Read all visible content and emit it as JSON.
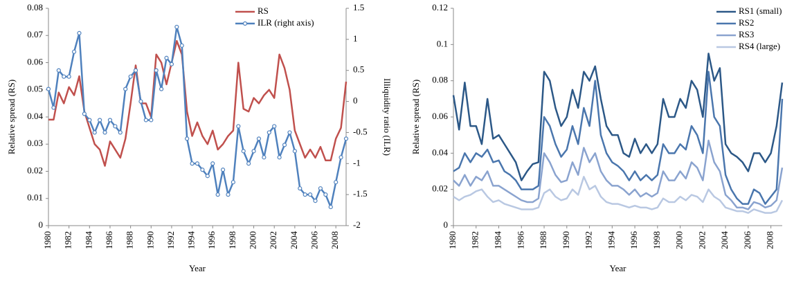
{
  "chart_data": [
    {
      "type": "line",
      "x_label": "Year",
      "y_label": "Relative spread (RS)",
      "y2_label": "Illiquidity ratio (ILR)",
      "legend": "top-right",
      "x": [
        1980,
        1980.5,
        1981,
        1981.5,
        1982,
        1982.5,
        1983,
        1983.5,
        1984,
        1984.5,
        1985,
        1985.5,
        1986,
        1986.5,
        1987,
        1987.5,
        1988,
        1988.5,
        1989,
        1989.5,
        1990,
        1990.5,
        1991,
        1991.5,
        1992,
        1992.5,
        1993,
        1993.5,
        1994,
        1994.5,
        1995,
        1995.5,
        1996,
        1996.5,
        1997,
        1997.5,
        1998,
        1998.5,
        1999,
        1999.5,
        2000,
        2000.5,
        2001,
        2001.5,
        2002,
        2002.5,
        2003,
        2003.5,
        2004,
        2004.5,
        2005,
        2005.5,
        2006,
        2006.5,
        2007,
        2007.5,
        2008,
        2008.5,
        2009
      ],
      "xlim": [
        1980,
        2009
      ],
      "xticks": [
        1980,
        1982,
        1984,
        1986,
        1988,
        1990,
        1992,
        1994,
        1996,
        1998,
        2000,
        2002,
        2004,
        2006,
        2008
      ],
      "ylim": [
        0,
        0.08
      ],
      "yticks": [
        0,
        0.01,
        0.02,
        0.03,
        0.04,
        0.05,
        0.06,
        0.07,
        0.08
      ],
      "y2lim": [
        -2,
        1.5
      ],
      "y2ticks": [
        -2,
        -1.5,
        -1,
        -0.5,
        0,
        0.5,
        1,
        1.5
      ],
      "series": [
        {
          "name": "RS",
          "color": "#c0504d",
          "values": [
            0.039,
            0.039,
            0.049,
            0.045,
            0.051,
            0.048,
            0.055,
            0.042,
            0.036,
            0.03,
            0.028,
            0.022,
            0.031,
            0.028,
            0.025,
            0.032,
            0.045,
            0.059,
            0.045,
            0.045,
            0.04,
            0.063,
            0.06,
            0.052,
            0.06,
            0.068,
            0.063,
            0.042,
            0.033,
            0.038,
            0.033,
            0.03,
            0.035,
            0.028,
            0.03,
            0.033,
            0.035,
            0.06,
            0.043,
            0.042,
            0.047,
            0.045,
            0.048,
            0.05,
            0.047,
            0.063,
            0.058,
            0.05,
            0.035,
            0.03,
            0.025,
            0.028,
            0.025,
            0.029,
            0.024,
            0.024,
            0.032,
            0.036,
            0.053
          ]
        },
        {
          "name": "ILR (right axis)",
          "color": "#4f81bd",
          "axis": "y2",
          "marker": "circle",
          "values": [
            0.2,
            -0.1,
            0.5,
            0.4,
            0.4,
            0.8,
            1.1,
            -0.2,
            -0.3,
            -0.5,
            -0.3,
            -0.5,
            -0.3,
            -0.4,
            -0.5,
            0.2,
            0.4,
            0.5,
            0.0,
            -0.3,
            -0.3,
            0.5,
            0.2,
            0.7,
            0.6,
            1.2,
            0.9,
            -0.6,
            -1.0,
            -1.0,
            -1.1,
            -1.2,
            -1.0,
            -1.5,
            -1.1,
            -1.5,
            -1.3,
            -0.4,
            -0.8,
            -1.0,
            -0.8,
            -0.6,
            -0.9,
            -0.5,
            -0.4,
            -0.9,
            -0.7,
            -0.5,
            -0.8,
            -1.4,
            -1.5,
            -1.5,
            -1.6,
            -1.4,
            -1.5,
            -1.7,
            -1.3,
            -0.9,
            -0.6
          ]
        }
      ]
    },
    {
      "type": "line",
      "x_label": "Year",
      "y_label": "Relative spread (RS)",
      "legend": "top-right",
      "x": [
        1980,
        1980.5,
        1981,
        1981.5,
        1982,
        1982.5,
        1983,
        1983.5,
        1984,
        1984.5,
        1985,
        1985.5,
        1986,
        1986.5,
        1987,
        1987.5,
        1988,
        1988.5,
        1989,
        1989.5,
        1990,
        1990.5,
        1991,
        1991.5,
        1992,
        1992.5,
        1993,
        1993.5,
        1994,
        1994.5,
        1995,
        1995.5,
        1996,
        1996.5,
        1997,
        1997.5,
        1998,
        1998.5,
        1999,
        1999.5,
        2000,
        2000.5,
        2001,
        2001.5,
        2002,
        2002.5,
        2003,
        2003.5,
        2004,
        2004.5,
        2005,
        2005.5,
        2006,
        2006.5,
        2007,
        2007.5,
        2008,
        2008.5,
        2009
      ],
      "xlim": [
        1980,
        2009
      ],
      "xticks": [
        1980,
        1982,
        1984,
        1986,
        1988,
        1990,
        1992,
        1994,
        1996,
        1998,
        2000,
        2002,
        2004,
        2006,
        2008
      ],
      "ylim": [
        0,
        0.12
      ],
      "yticks": [
        0,
        0.02,
        0.04,
        0.06,
        0.08,
        0.1,
        0.12
      ],
      "series": [
        {
          "name": "RS1 (small)",
          "color": "#2c5887",
          "values": [
            0.072,
            0.053,
            0.079,
            0.055,
            0.055,
            0.045,
            0.07,
            0.048,
            0.05,
            0.045,
            0.04,
            0.035,
            0.025,
            0.03,
            0.034,
            0.035,
            0.085,
            0.08,
            0.065,
            0.055,
            0.06,
            0.075,
            0.065,
            0.085,
            0.08,
            0.088,
            0.07,
            0.055,
            0.05,
            0.05,
            0.04,
            0.038,
            0.048,
            0.04,
            0.045,
            0.04,
            0.045,
            0.07,
            0.06,
            0.06,
            0.07,
            0.065,
            0.08,
            0.075,
            0.06,
            0.095,
            0.08,
            0.087,
            0.045,
            0.04,
            0.038,
            0.035,
            0.03,
            0.04,
            0.04,
            0.035,
            0.04,
            0.055,
            0.079
          ]
        },
        {
          "name": "RS2",
          "color": "#4a76ad",
          "values": [
            0.03,
            0.032,
            0.04,
            0.035,
            0.04,
            0.038,
            0.042,
            0.035,
            0.036,
            0.03,
            0.028,
            0.025,
            0.02,
            0.02,
            0.02,
            0.022,
            0.06,
            0.055,
            0.045,
            0.038,
            0.042,
            0.055,
            0.045,
            0.065,
            0.055,
            0.08,
            0.05,
            0.04,
            0.035,
            0.033,
            0.03,
            0.025,
            0.03,
            0.025,
            0.028,
            0.025,
            0.028,
            0.045,
            0.04,
            0.04,
            0.045,
            0.042,
            0.055,
            0.05,
            0.04,
            0.085,
            0.06,
            0.055,
            0.028,
            0.02,
            0.015,
            0.012,
            0.012,
            0.02,
            0.018,
            0.012,
            0.016,
            0.02,
            0.07
          ]
        },
        {
          "name": "RS3",
          "color": "#8aa3cf",
          "values": [
            0.025,
            0.022,
            0.028,
            0.022,
            0.027,
            0.025,
            0.03,
            0.022,
            0.022,
            0.02,
            0.018,
            0.016,
            0.014,
            0.013,
            0.013,
            0.015,
            0.04,
            0.035,
            0.028,
            0.024,
            0.025,
            0.035,
            0.028,
            0.043,
            0.035,
            0.04,
            0.03,
            0.025,
            0.022,
            0.022,
            0.02,
            0.017,
            0.02,
            0.016,
            0.018,
            0.016,
            0.018,
            0.03,
            0.025,
            0.025,
            0.03,
            0.026,
            0.035,
            0.032,
            0.025,
            0.047,
            0.035,
            0.03,
            0.017,
            0.014,
            0.01,
            0.01,
            0.009,
            0.013,
            0.012,
            0.01,
            0.011,
            0.014,
            0.032
          ]
        },
        {
          "name": "RS4 (large)",
          "color": "#b9c8e2",
          "values": [
            0.016,
            0.014,
            0.016,
            0.017,
            0.019,
            0.02,
            0.016,
            0.013,
            0.014,
            0.012,
            0.011,
            0.01,
            0.009,
            0.009,
            0.009,
            0.01,
            0.018,
            0.02,
            0.016,
            0.014,
            0.015,
            0.02,
            0.017,
            0.027,
            0.02,
            0.022,
            0.016,
            0.013,
            0.012,
            0.012,
            0.011,
            0.01,
            0.011,
            0.01,
            0.01,
            0.009,
            0.01,
            0.015,
            0.013,
            0.013,
            0.016,
            0.014,
            0.017,
            0.016,
            0.013,
            0.02,
            0.016,
            0.014,
            0.01,
            0.009,
            0.008,
            0.008,
            0.007,
            0.009,
            0.008,
            0.007,
            0.007,
            0.008,
            0.014
          ]
        }
      ]
    }
  ]
}
